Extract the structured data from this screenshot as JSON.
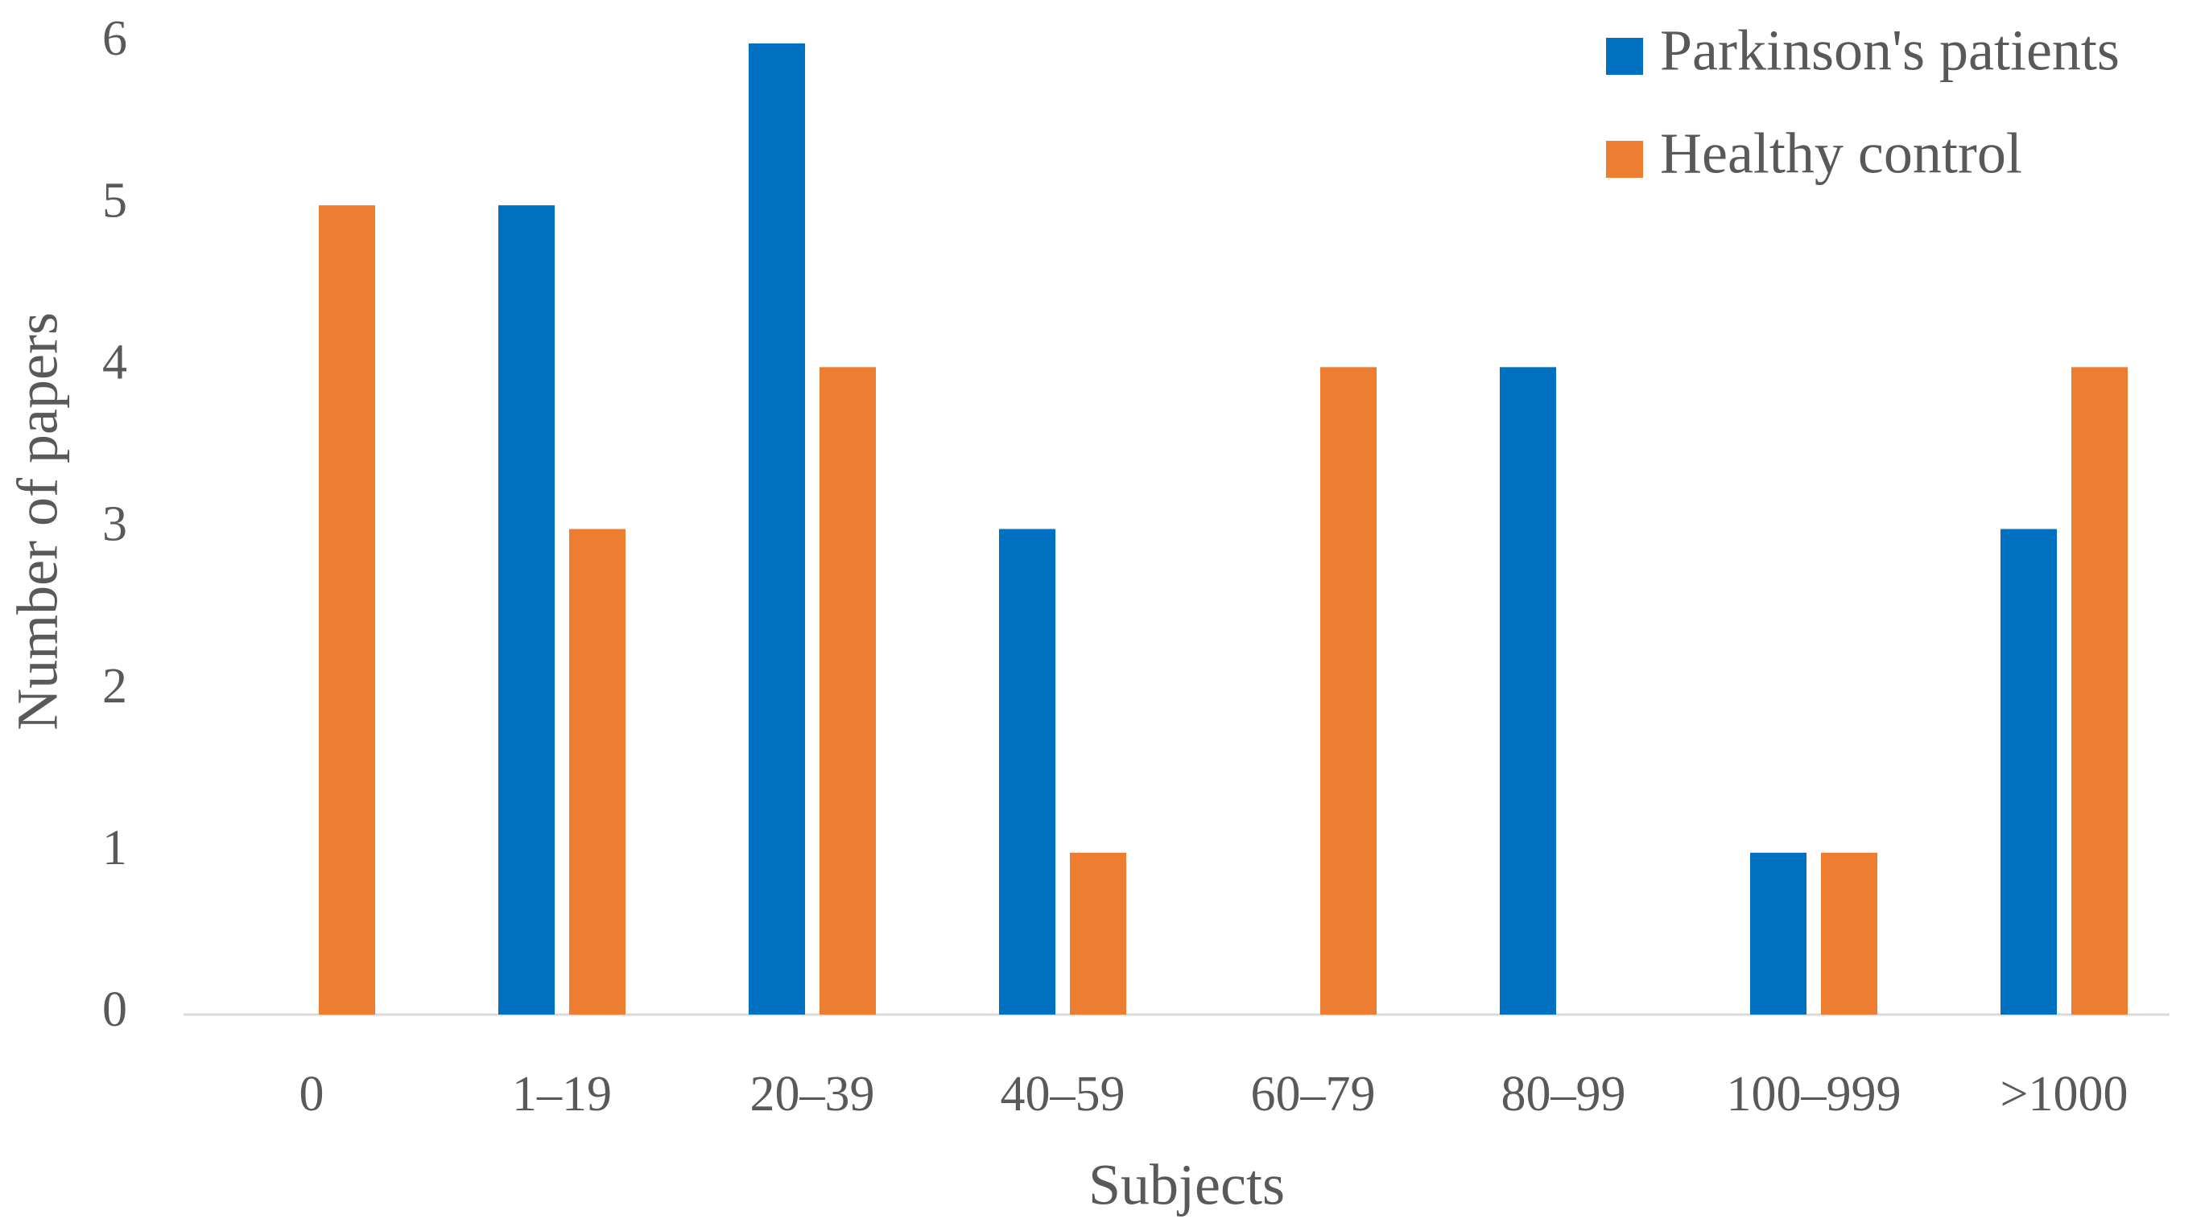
{
  "chart_data": {
    "type": "bar",
    "x_label": "Subjects",
    "y_label": "Number of papers",
    "categories": [
      "0",
      "1–19",
      "20–39",
      "40–59",
      "60–79",
      "80–99",
      "100–999",
      ">1000"
    ],
    "series": [
      {
        "name": "Parkinson's patients",
        "color": "#0070c0",
        "values": [
          0,
          5,
          6,
          3,
          0,
          4,
          1,
          3
        ]
      },
      {
        "name": "Healthy control",
        "color": "#ed7d31",
        "values": [
          5,
          3,
          4,
          1,
          4,
          0,
          1,
          4
        ]
      }
    ],
    "ylim": [
      0,
      6
    ],
    "yticks": [
      0,
      1,
      2,
      3,
      4,
      5,
      6
    ],
    "grid": false,
    "legend": "top-right"
  }
}
